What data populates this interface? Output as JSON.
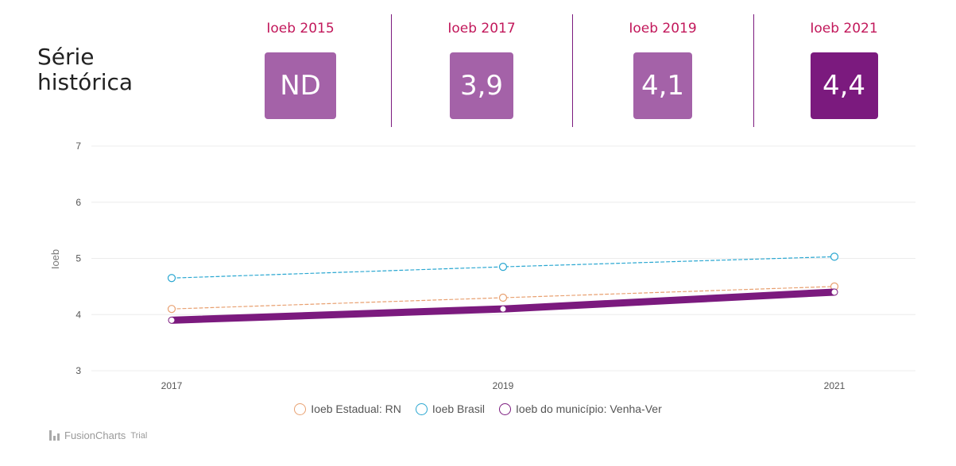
{
  "header": {
    "title_line1": "Série",
    "title_line2": "histórica"
  },
  "cards": [
    {
      "label": "Ioeb 2015",
      "value": "ND",
      "color": "#a462a8"
    },
    {
      "label": "Ioeb 2017",
      "value": "3,9",
      "color": "#a462a8"
    },
    {
      "label": "Ioeb 2019",
      "value": "4,1",
      "color": "#a462a8"
    },
    {
      "label": "Ioeb 2021",
      "value": "4,4",
      "color": "#7b1a7e"
    }
  ],
  "chart_data": {
    "type": "line",
    "title": "",
    "xlabel": "",
    "ylabel": "Ioeb",
    "categories": [
      "2017",
      "2019",
      "2021"
    ],
    "ylim": [
      3,
      7
    ],
    "yticks": [
      "3",
      "4",
      "5",
      "6",
      "7"
    ],
    "grid": true,
    "legend_position": "bottom",
    "series": [
      {
        "name": "Ioeb Estadual: RN",
        "values": [
          4.1,
          4.3,
          4.5
        ],
        "color": "#e8a070",
        "style": "dashed"
      },
      {
        "name": "Ioeb Brasil",
        "values": [
          4.65,
          4.85,
          5.03
        ],
        "color": "#2aa7d1",
        "style": "dashed"
      },
      {
        "name": "Ioeb do município: Venha-Ver",
        "values": [
          3.9,
          4.1,
          4.4
        ],
        "color": "#7b1a7e",
        "style": "solid"
      }
    ]
  },
  "footer": {
    "brand": "FusionCharts",
    "trial": "Trial"
  }
}
